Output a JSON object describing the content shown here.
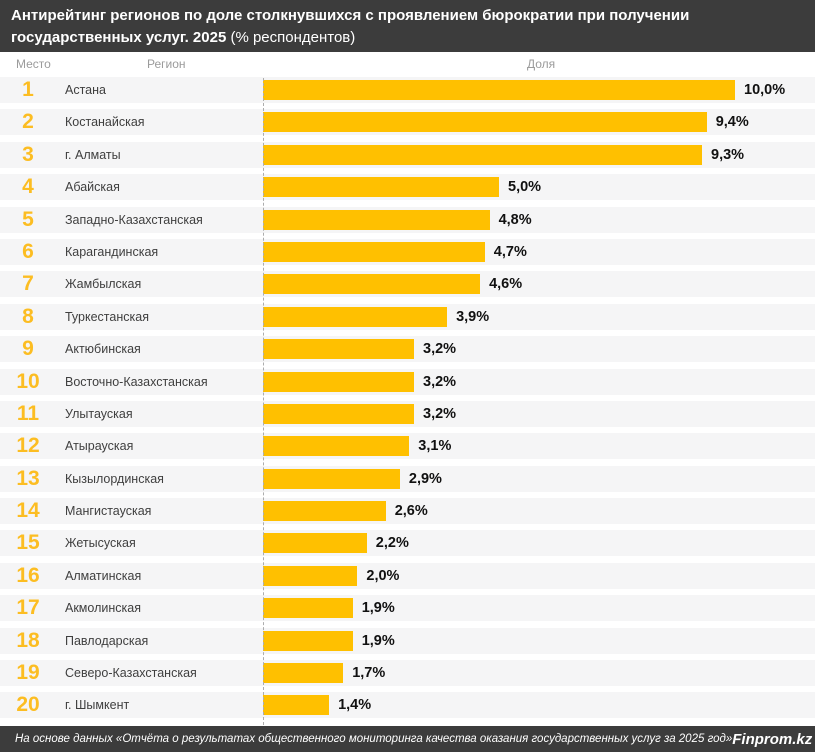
{
  "title": {
    "main": "Антирейтинг регионов по доле столкнувшихся с проявлением бюрократии при получении государственных услуг. 2025",
    "suffix": "(% респондентов)"
  },
  "table_header": {
    "rank": "Место",
    "region": "Регион",
    "share": "Доля"
  },
  "footer": {
    "source": "На основе данных «Отчёта о результатах общественного мониторинга качества оказания государственных услуг за 2025 год»",
    "brand": "Finprom.kz"
  },
  "colors": {
    "bar": "#FFC000",
    "rank_number": "#FCBD22",
    "header_bg": "#3C3C3C",
    "row_bg": "#F5F5F6"
  },
  "chart_data": {
    "type": "bar",
    "orientation": "horizontal",
    "title": "Антирейтинг регионов по доле столкнувшихся с проявлением бюрократии при получении государственных услуг. 2025 (% респондентов)",
    "xlabel": "Доля",
    "ylabel": "Регион",
    "unit": "% респондентов",
    "xlim": [
      0,
      10.5
    ],
    "grid": false,
    "legend": "none",
    "ranks": [
      1,
      2,
      3,
      4,
      5,
      6,
      7,
      8,
      9,
      10,
      11,
      12,
      13,
      14,
      15,
      16,
      17,
      18,
      19,
      20
    ],
    "categories": [
      "Астана",
      "Костанайская",
      "г. Алматы",
      "Абайская",
      "Западно-Казахстанская",
      "Карагандинская",
      "Жамбылская",
      "Туркестанская",
      "Актюбинская",
      "Восточно-Казахстанская",
      "Улытауская",
      "Атырауская",
      "Кызылординская",
      "Мангистауская",
      "Жетысуская",
      "Алматинская",
      "Акмолинская",
      "Павлодарская",
      "Северо-Казахстанская",
      "г. Шымкент"
    ],
    "values": [
      10.0,
      9.4,
      9.3,
      5.0,
      4.8,
      4.7,
      4.6,
      3.9,
      3.2,
      3.2,
      3.2,
      3.1,
      2.9,
      2.6,
      2.2,
      2.0,
      1.9,
      1.9,
      1.7,
      1.4
    ],
    "value_labels": [
      "10,0%",
      "9,4%",
      "9,3%",
      "5,0%",
      "4,8%",
      "4,7%",
      "4,6%",
      "3,9%",
      "3,2%",
      "3,2%",
      "3,2%",
      "3,1%",
      "2,9%",
      "2,6%",
      "2,2%",
      "2,0%",
      "1,9%",
      "1,9%",
      "1,7%",
      "1,4%"
    ]
  }
}
